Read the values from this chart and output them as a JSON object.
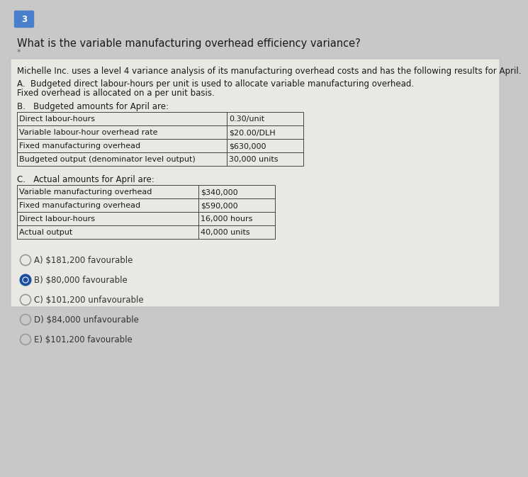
{
  "question_number": "3",
  "question_number_bg": "#4a7fcb",
  "question_number_color": "#ffffff",
  "question_text": "What is the variable manufacturing overhead efficiency variance?",
  "asterisk": "*",
  "context_text": "Michelle Inc. uses a level 4 variance analysis of its manufacturing overhead costs and has the following results for April.",
  "section_a_line1": "A.  Budgeted direct labour-hours per unit is used to allocate variable manufacturing overhead.",
  "section_a_line2": "Fixed overhead is allocated on a per unit basis.",
  "section_b_title": "B.   Budgeted amounts for April are:",
  "table_b_rows": [
    [
      "Direct labour-hours",
      "0.30/unit"
    ],
    [
      "Variable labour-hour overhead rate",
      "$20.00/DLH"
    ],
    [
      "Fixed manufacturing overhead",
      "$630,000"
    ],
    [
      "Budgeted output (denominator level output)",
      "30,000 units"
    ]
  ],
  "section_c_title": "C.   Actual amounts for April are:",
  "table_c_rows": [
    [
      "Variable manufacturing overhead",
      "$340,000"
    ],
    [
      "Fixed manufacturing overhead",
      "$590,000"
    ],
    [
      "Direct labour-hours",
      "16,000 hours"
    ],
    [
      "Actual output",
      "40,000 units"
    ]
  ],
  "options": [
    {
      "label": "A) $181,200 favourable",
      "selected": false
    },
    {
      "label": "B) $80,000 favourable",
      "selected": true
    },
    {
      "label": "C) $101,200 unfavourable",
      "selected": false
    },
    {
      "label": "D) $84,000 unfavourable",
      "selected": false
    },
    {
      "label": "E) $101,200 favourable",
      "selected": false
    }
  ],
  "bg_color": "#c8c8c8",
  "card_bg": "#eae8e3",
  "table_line_color": "#444444",
  "selected_color": "#1a4fa0",
  "unselected_color": "#888888",
  "text_color": "#1a1a1a",
  "option_text_color": "#333333",
  "fs_question": 10.5,
  "fs_body": 8.5,
  "fs_table": 8.0,
  "fs_option": 8.5
}
